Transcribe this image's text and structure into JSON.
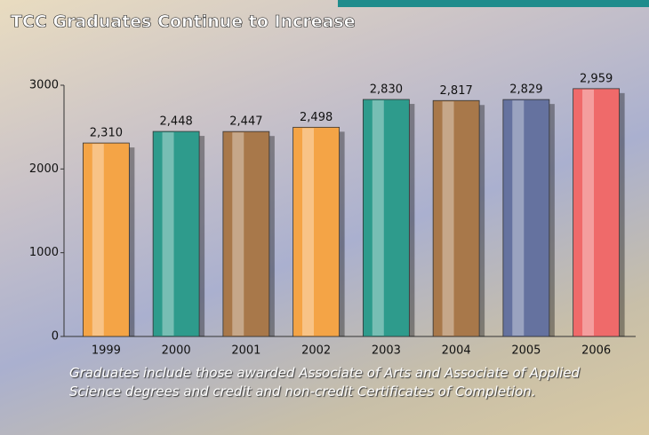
{
  "chart_data": {
    "type": "bar",
    "title": "TCC Graduates Continue to Increase",
    "categories": [
      "1999",
      "2000",
      "2001",
      "2002",
      "2003",
      "2004",
      "2005",
      "2006"
    ],
    "values": [
      2310,
      2448,
      2447,
      2498,
      2830,
      2817,
      2829,
      2959
    ],
    "value_labels": [
      "2,310",
      "2,448",
      "2,447",
      "2,498",
      "2,830",
      "2,817",
      "2,829",
      "2,959"
    ],
    "colors": [
      "#f4a446",
      "#2e9b8c",
      "#a8784a",
      "#f4a446",
      "#2e9b8c",
      "#a8784a",
      "#65729f",
      "#ef6a6a"
    ],
    "ylim": [
      0,
      3000
    ],
    "yticks": [
      0,
      1000,
      2000,
      3000
    ],
    "note": "Graduates include those awarded Associate of Arts and Associate of Applied Science degrees and credit and non-credit Certificates of Completion."
  }
}
